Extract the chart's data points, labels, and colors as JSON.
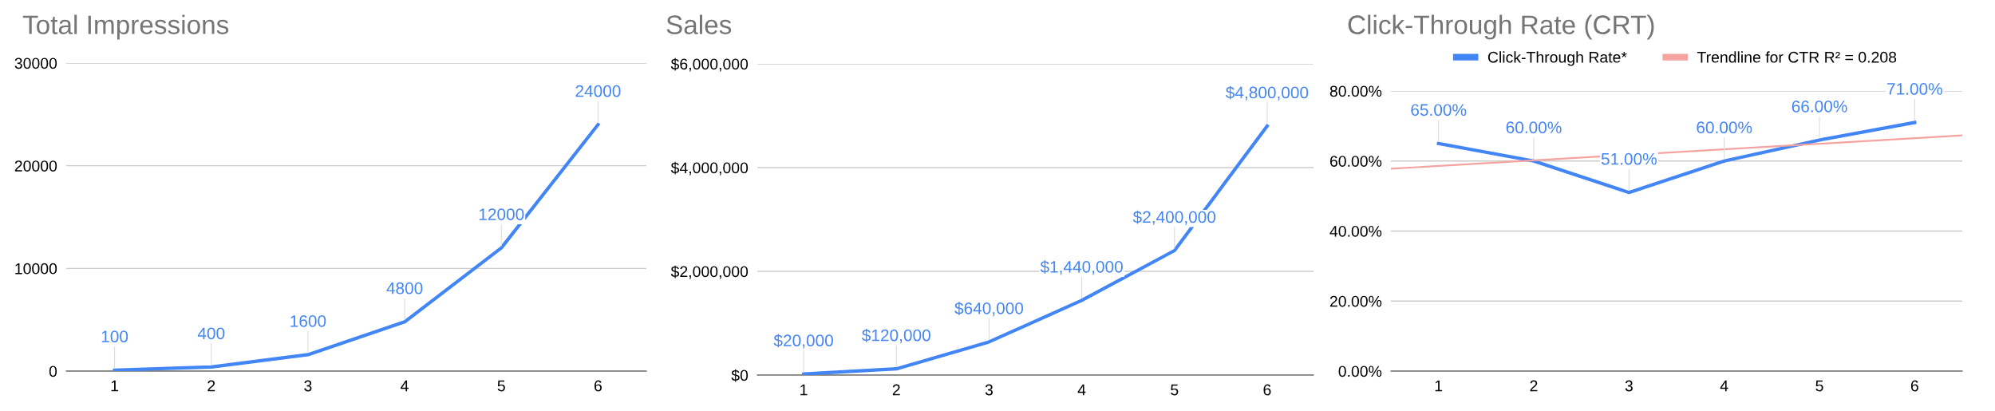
{
  "chart_data": [
    {
      "type": "line",
      "title": "Total Impressions",
      "categories": [
        "1",
        "2",
        "3",
        "4",
        "5",
        "6"
      ],
      "series": [
        {
          "color": "#4285f4",
          "values": [
            100,
            400,
            1600,
            4800,
            12000,
            24000
          ]
        }
      ],
      "data_labels": true,
      "ylim": [
        0,
        30000
      ],
      "yticks": [
        0,
        10000,
        20000,
        30000
      ],
      "grid": "y"
    },
    {
      "type": "line",
      "title": "Sales",
      "categories": [
        "1",
        "2",
        "3",
        "4",
        "5",
        "6"
      ],
      "series": [
        {
          "color": "#4285f4",
          "values": [
            20000,
            120000,
            640000,
            1440000,
            2400000,
            4800000
          ],
          "value_labels": [
            "$20,000",
            "$120,000",
            "$640,000",
            "$1,440,000",
            "$2,400,000",
            "$4,800,000"
          ]
        }
      ],
      "ylim": [
        0,
        6000000
      ],
      "yticks": [
        {
          "value": 0,
          "label": "$0"
        },
        {
          "value": 2000000,
          "label": "$2,000,000"
        },
        {
          "value": 4000000,
          "label": "$4,000,000"
        },
        {
          "value": 6000000,
          "label": "$6,000,000"
        }
      ],
      "grid": "y"
    },
    {
      "type": "line",
      "title": "Click-Through Rate (CRT)",
      "series": [
        {
          "name": "Click-Through Rate*",
          "color": "#4285f4",
          "x": [
            1,
            2,
            3,
            4,
            5,
            6
          ],
          "values": [
            65,
            60,
            51,
            60,
            66,
            71
          ],
          "value_labels": [
            "65.00%",
            "60.00%",
            "51.00%",
            "60.00%",
            "66.00%",
            "71.00%"
          ]
        },
        {
          "name": "Trendline for CTR R² = 0.208",
          "type": "line",
          "color": "#f4a3a0",
          "x": [
            0.5,
            6.5
          ],
          "values": [
            57.8,
            67.3
          ]
        }
      ],
      "xlim": [
        0.5,
        6.5
      ],
      "xticks": [
        1,
        2,
        3,
        4,
        5,
        6
      ],
      "ylim": [
        0,
        80
      ],
      "yticks": [
        {
          "value": 0,
          "label": "0.00%"
        },
        {
          "value": 20,
          "label": "20.00%"
        },
        {
          "value": 40,
          "label": "40.00%"
        },
        {
          "value": 60,
          "label": "60.00%"
        },
        {
          "value": 80,
          "label": "80.00%"
        }
      ],
      "grid": "y",
      "legend": "top"
    }
  ]
}
